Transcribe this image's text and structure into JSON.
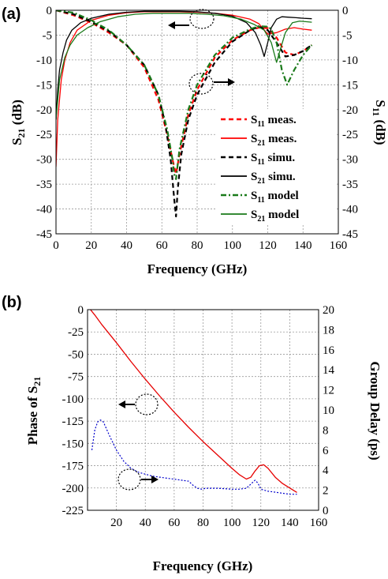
{
  "chart_data": [
    {
      "panel_label": "(a)",
      "type": "line",
      "xlabel": "Frequency (GHz)",
      "ylabel_left": [
        "S",
        "21",
        " (dB)"
      ],
      "ylabel_right": [
        "S",
        "11",
        " (dB)"
      ],
      "xlim": [
        0,
        160
      ],
      "ylim": [
        -45,
        0
      ],
      "xticks": [
        0,
        20,
        40,
        60,
        80,
        100,
        120,
        140,
        160
      ],
      "yticks": [
        0,
        -5,
        -10,
        -15,
        -20,
        -25,
        -30,
        -35,
        -40,
        -45
      ],
      "grid": true,
      "legend_position": "lower-right",
      "legend": [
        {
          "pre": "S",
          "sub": "11",
          "post": " meas."
        },
        {
          "pre": "S",
          "sub": "21",
          "post": " meas."
        },
        {
          "pre": "S",
          "sub": "11",
          "post": " simu."
        },
        {
          "pre": "S",
          "sub": "21",
          "post": " simu."
        },
        {
          "pre": "S",
          "sub": "11",
          "post": " model"
        },
        {
          "pre": "S",
          "sub": "21",
          "post": " model"
        }
      ],
      "series": [
        {
          "color": "#ff0000",
          "style": "dash",
          "x": [
            0,
            10,
            20,
            30,
            40,
            50,
            58,
            63,
            66,
            68,
            70,
            75,
            80,
            90,
            100,
            110,
            115,
            120,
            125,
            130,
            135,
            140,
            145
          ],
          "y": [
            0,
            -1,
            -2.5,
            -4.5,
            -7,
            -11.5,
            -18,
            -25,
            -30,
            -33,
            -29,
            -21,
            -16,
            -9.5,
            -6,
            -4,
            -3.5,
            -3.6,
            -5.5,
            -8.5,
            -9,
            -8.2,
            -7
          ]
        },
        {
          "color": "#ff0000",
          "style": "solid",
          "x": [
            0,
            1,
            3,
            5,
            8,
            12,
            20,
            30,
            40,
            50,
            60,
            70,
            80,
            90,
            100,
            110,
            115,
            120,
            125,
            130,
            135,
            140,
            145
          ],
          "y": [
            -31.5,
            -22,
            -14,
            -10,
            -6.5,
            -4,
            -2,
            -1,
            -0.5,
            -0.3,
            -0.3,
            -0.3,
            -0.4,
            -0.6,
            -1,
            -1.8,
            -2.7,
            -4.8,
            -4.5,
            -3.8,
            -3.5,
            -3.8,
            -4
          ]
        },
        {
          "color": "#000000",
          "style": "dash",
          "x": [
            0,
            10,
            20,
            30,
            40,
            50,
            58,
            62,
            65,
            67,
            68,
            69,
            71,
            75,
            80,
            90,
            100,
            110,
            115,
            120,
            125,
            130,
            135,
            140,
            145
          ],
          "y": [
            0,
            -0.8,
            -2.3,
            -4.2,
            -7,
            -11,
            -17,
            -23,
            -30,
            -38,
            -41.5,
            -36,
            -29,
            -22,
            -17,
            -10.5,
            -6.3,
            -4,
            -3.3,
            -4,
            -6.5,
            -9.3,
            -9,
            -8.2,
            -7
          ]
        },
        {
          "color": "#000000",
          "style": "solid",
          "x": [
            0,
            1,
            2,
            4,
            6,
            9,
            14,
            20,
            30,
            40,
            50,
            60,
            70,
            80,
            90,
            100,
            108,
            113,
            116,
            118,
            120,
            122,
            125,
            128,
            132,
            136,
            140,
            145
          ],
          "y": [
            -22,
            -16,
            -12,
            -8.5,
            -6,
            -4,
            -2.5,
            -1.6,
            -0.8,
            -0.4,
            -0.2,
            -0.2,
            -0.2,
            -0.3,
            -0.6,
            -1.2,
            -2.5,
            -4.5,
            -7,
            -9.3,
            -6.5,
            -3.5,
            -1.8,
            -1.3,
            -1.4,
            -1.5,
            -1.6,
            -1.7
          ]
        },
        {
          "color": "#1a7a1a",
          "style": "dashdot",
          "x": [
            0,
            10,
            20,
            30,
            40,
            50,
            58,
            63,
            66,
            67,
            68,
            70,
            75,
            80,
            90,
            100,
            110,
            115,
            120,
            122,
            125,
            128,
            131,
            135,
            140,
            145
          ],
          "y": [
            0,
            -0.5,
            -2,
            -4,
            -7,
            -11,
            -17,
            -24,
            -30,
            -33,
            -34,
            -28,
            -20,
            -15,
            -9,
            -5.5,
            -3.8,
            -3.2,
            -3.3,
            -3.8,
            -6.5,
            -12,
            -15,
            -12,
            -9,
            -7
          ]
        },
        {
          "color": "#1a7a1a",
          "style": "solid",
          "x": [
            0,
            2,
            5,
            8,
            12,
            18,
            25,
            35,
            45,
            55,
            65,
            75,
            85,
            95,
            105,
            112,
            118,
            122,
            125,
            127,
            130,
            134,
            138,
            142,
            145
          ],
          "y": [
            -22,
            -14,
            -9.5,
            -7,
            -5,
            -3.5,
            -2.3,
            -1.3,
            -0.8,
            -0.6,
            -0.6,
            -0.6,
            -0.8,
            -1.1,
            -1.8,
            -2.8,
            -4,
            -6.5,
            -10.5,
            -8,
            -4.5,
            -2.5,
            -2.2,
            -2.3,
            -2.4
          ]
        }
      ]
    },
    {
      "panel_label": "(b)",
      "type": "line",
      "xlabel": "Frequency (GHz)",
      "ylabel_left": [
        "Phase of S",
        "21",
        ""
      ],
      "ylabel_right": "Group Delay (ps)",
      "xlim": [
        0,
        160
      ],
      "ylim_left": [
        -225,
        0
      ],
      "ylim_right": [
        0,
        20
      ],
      "xticks": [
        20,
        40,
        60,
        80,
        100,
        120,
        140,
        160
      ],
      "yticks_left": [
        0,
        -25,
        -50,
        -75,
        -100,
        -125,
        -150,
        -175,
        -200,
        -225
      ],
      "yticks_right": [
        20,
        18,
        16,
        14,
        12,
        10,
        8,
        6,
        4,
        2,
        0
      ],
      "grid": true,
      "series": [
        {
          "axis": "left",
          "color": "#e60000",
          "style": "solid",
          "x": [
            2,
            5,
            10,
            20,
            30,
            40,
            50,
            60,
            70,
            80,
            90,
            100,
            105,
            110,
            113,
            116,
            119,
            122,
            125,
            130,
            135,
            140,
            145
          ],
          "y": [
            0,
            -6,
            -17,
            -37,
            -58,
            -78,
            -97,
            -115,
            -132,
            -148,
            -163,
            -178,
            -185,
            -190,
            -188,
            -181,
            -175,
            -174,
            -178,
            -188,
            -195,
            -200,
            -205
          ]
        },
        {
          "axis": "right",
          "color": "#0000cc",
          "style": "dot",
          "x": [
            3,
            5,
            7,
            9,
            11,
            15,
            20,
            25,
            30,
            35,
            40,
            45,
            50,
            55,
            60,
            65,
            70,
            73,
            76,
            79,
            82,
            90,
            100,
            105,
            110,
            113,
            116,
            118,
            120,
            125,
            130,
            135,
            140,
            145
          ],
          "y": [
            6,
            8,
            8.8,
            9,
            8.8,
            7.5,
            6,
            4.9,
            4.2,
            3.8,
            3.6,
            3.4,
            3.3,
            3.2,
            3.1,
            3.0,
            2.9,
            2.5,
            2.2,
            2.1,
            2.2,
            2.2,
            2.1,
            2.1,
            2.2,
            2.6,
            3.0,
            2.7,
            2.1,
            1.9,
            1.8,
            1.7,
            1.6,
            1.6
          ]
        }
      ]
    }
  ]
}
